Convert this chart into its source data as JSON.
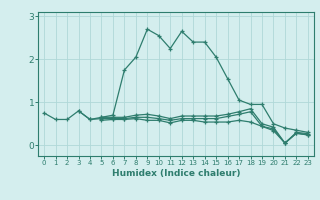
{
  "xlabel": "Humidex (Indice chaleur)",
  "x": [
    0,
    1,
    2,
    3,
    4,
    5,
    6,
    7,
    8,
    9,
    10,
    11,
    12,
    13,
    14,
    15,
    16,
    17,
    18,
    19,
    20,
    21,
    22,
    23
  ],
  "line1": [
    0.75,
    0.6,
    0.6,
    0.8,
    0.6,
    0.65,
    0.7,
    1.75,
    2.05,
    2.7,
    2.55,
    2.25,
    2.65,
    2.4,
    2.4,
    2.05,
    1.55,
    1.05,
    0.95,
    0.95,
    0.5,
    0.4,
    0.35,
    0.3
  ],
  "line2": [
    null,
    null,
    null,
    null,
    null,
    0.65,
    0.65,
    0.65,
    0.7,
    0.72,
    0.68,
    0.62,
    0.68,
    0.68,
    0.68,
    0.68,
    0.72,
    0.78,
    0.85,
    0.5,
    0.42,
    0.05,
    0.3,
    0.27
  ],
  "line3": [
    null,
    null,
    null,
    null,
    null,
    0.58,
    0.6,
    0.6,
    0.62,
    0.58,
    0.58,
    0.52,
    0.58,
    0.58,
    0.54,
    0.54,
    0.54,
    0.58,
    0.54,
    0.44,
    0.34,
    0.05,
    0.28,
    0.24
  ],
  "line4": [
    null,
    null,
    null,
    0.8,
    0.6,
    0.62,
    0.62,
    0.62,
    0.65,
    0.65,
    0.62,
    0.58,
    0.62,
    0.62,
    0.62,
    0.62,
    0.67,
    0.72,
    0.78,
    0.44,
    0.38,
    0.05,
    0.28,
    0.24
  ],
  "color": "#2e7d6e",
  "bg_color": "#d4eeee",
  "grid_color": "#b0d8d8",
  "ylim": [
    -0.25,
    3.1
  ],
  "yticks": [
    0,
    1,
    2,
    3
  ],
  "xlim": [
    -0.5,
    23.5
  ]
}
